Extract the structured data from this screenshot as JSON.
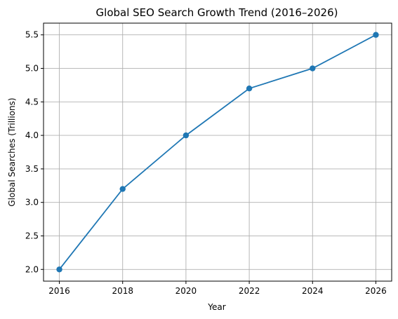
{
  "chart_data": {
    "type": "line",
    "title": "Global SEO Search Growth Trend (2016–2026)",
    "xlabel": "Year",
    "ylabel": "Global Searches (Trillions)",
    "x": [
      2016,
      2018,
      2020,
      2022,
      2024,
      2026
    ],
    "series": [
      {
        "values": [
          2.0,
          3.2,
          4.0,
          4.7,
          5.0,
          5.5
        ]
      }
    ],
    "xlim": [
      2015.5,
      2026.5
    ],
    "ylim": [
      1.825,
      5.675
    ],
    "xticks": [
      2016,
      2018,
      2020,
      2022,
      2024,
      2026
    ],
    "xtick_labels": [
      "2016",
      "2018",
      "2020",
      "2022",
      "2024",
      "2026"
    ],
    "yticks": [
      2.0,
      2.5,
      3.0,
      3.5,
      4.0,
      4.5,
      5.0,
      5.5
    ],
    "ytick_labels": [
      "2.0",
      "2.5",
      "3.0",
      "3.5",
      "4.0",
      "4.5",
      "5.0",
      "5.5"
    ],
    "grid": true,
    "markers": "circle",
    "line_color": "#1f77b4",
    "grid_color": "#b0b0b0"
  }
}
